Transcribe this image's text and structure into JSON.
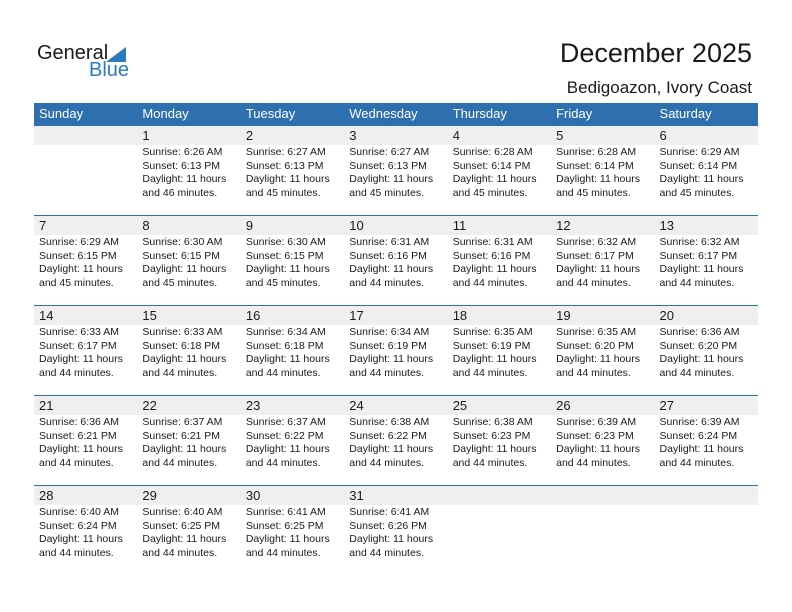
{
  "logo": {
    "text1": "General",
    "text2": "Blue"
  },
  "header": {
    "title": "December 2025",
    "location": "Bedigoazon, Ivory Coast"
  },
  "weekdays": [
    "Sunday",
    "Monday",
    "Tuesday",
    "Wednesday",
    "Thursday",
    "Friday",
    "Saturday"
  ],
  "daylight_label": "Daylight: 11 hours",
  "weeks": [
    [
      null,
      {
        "day": "1",
        "sunrise": "Sunrise: 6:26 AM",
        "sunset": "Sunset: 6:13 PM",
        "minutes": "and 46 minutes."
      },
      {
        "day": "2",
        "sunrise": "Sunrise: 6:27 AM",
        "sunset": "Sunset: 6:13 PM",
        "minutes": "and 45 minutes."
      },
      {
        "day": "3",
        "sunrise": "Sunrise: 6:27 AM",
        "sunset": "Sunset: 6:13 PM",
        "minutes": "and 45 minutes."
      },
      {
        "day": "4",
        "sunrise": "Sunrise: 6:28 AM",
        "sunset": "Sunset: 6:14 PM",
        "minutes": "and 45 minutes."
      },
      {
        "day": "5",
        "sunrise": "Sunrise: 6:28 AM",
        "sunset": "Sunset: 6:14 PM",
        "minutes": "and 45 minutes."
      },
      {
        "day": "6",
        "sunrise": "Sunrise: 6:29 AM",
        "sunset": "Sunset: 6:14 PM",
        "minutes": "and 45 minutes."
      }
    ],
    [
      {
        "day": "7",
        "sunrise": "Sunrise: 6:29 AM",
        "sunset": "Sunset: 6:15 PM",
        "minutes": "and 45 minutes."
      },
      {
        "day": "8",
        "sunrise": "Sunrise: 6:30 AM",
        "sunset": "Sunset: 6:15 PM",
        "minutes": "and 45 minutes."
      },
      {
        "day": "9",
        "sunrise": "Sunrise: 6:30 AM",
        "sunset": "Sunset: 6:15 PM",
        "minutes": "and 45 minutes."
      },
      {
        "day": "10",
        "sunrise": "Sunrise: 6:31 AM",
        "sunset": "Sunset: 6:16 PM",
        "minutes": "and 44 minutes."
      },
      {
        "day": "11",
        "sunrise": "Sunrise: 6:31 AM",
        "sunset": "Sunset: 6:16 PM",
        "minutes": "and 44 minutes."
      },
      {
        "day": "12",
        "sunrise": "Sunrise: 6:32 AM",
        "sunset": "Sunset: 6:17 PM",
        "minutes": "and 44 minutes."
      },
      {
        "day": "13",
        "sunrise": "Sunrise: 6:32 AM",
        "sunset": "Sunset: 6:17 PM",
        "minutes": "and 44 minutes."
      }
    ],
    [
      {
        "day": "14",
        "sunrise": "Sunrise: 6:33 AM",
        "sunset": "Sunset: 6:17 PM",
        "minutes": "and 44 minutes."
      },
      {
        "day": "15",
        "sunrise": "Sunrise: 6:33 AM",
        "sunset": "Sunset: 6:18 PM",
        "minutes": "and 44 minutes."
      },
      {
        "day": "16",
        "sunrise": "Sunrise: 6:34 AM",
        "sunset": "Sunset: 6:18 PM",
        "minutes": "and 44 minutes."
      },
      {
        "day": "17",
        "sunrise": "Sunrise: 6:34 AM",
        "sunset": "Sunset: 6:19 PM",
        "minutes": "and 44 minutes."
      },
      {
        "day": "18",
        "sunrise": "Sunrise: 6:35 AM",
        "sunset": "Sunset: 6:19 PM",
        "minutes": "and 44 minutes."
      },
      {
        "day": "19",
        "sunrise": "Sunrise: 6:35 AM",
        "sunset": "Sunset: 6:20 PM",
        "minutes": "and 44 minutes."
      },
      {
        "day": "20",
        "sunrise": "Sunrise: 6:36 AM",
        "sunset": "Sunset: 6:20 PM",
        "minutes": "and 44 minutes."
      }
    ],
    [
      {
        "day": "21",
        "sunrise": "Sunrise: 6:36 AM",
        "sunset": "Sunset: 6:21 PM",
        "minutes": "and 44 minutes."
      },
      {
        "day": "22",
        "sunrise": "Sunrise: 6:37 AM",
        "sunset": "Sunset: 6:21 PM",
        "minutes": "and 44 minutes."
      },
      {
        "day": "23",
        "sunrise": "Sunrise: 6:37 AM",
        "sunset": "Sunset: 6:22 PM",
        "minutes": "and 44 minutes."
      },
      {
        "day": "24",
        "sunrise": "Sunrise: 6:38 AM",
        "sunset": "Sunset: 6:22 PM",
        "minutes": "and 44 minutes."
      },
      {
        "day": "25",
        "sunrise": "Sunrise: 6:38 AM",
        "sunset": "Sunset: 6:23 PM",
        "minutes": "and 44 minutes."
      },
      {
        "day": "26",
        "sunrise": "Sunrise: 6:39 AM",
        "sunset": "Sunset: 6:23 PM",
        "minutes": "and 44 minutes."
      },
      {
        "day": "27",
        "sunrise": "Sunrise: 6:39 AM",
        "sunset": "Sunset: 6:24 PM",
        "minutes": "and 44 minutes."
      }
    ],
    [
      {
        "day": "28",
        "sunrise": "Sunrise: 6:40 AM",
        "sunset": "Sunset: 6:24 PM",
        "minutes": "and 44 minutes."
      },
      {
        "day": "29",
        "sunrise": "Sunrise: 6:40 AM",
        "sunset": "Sunset: 6:25 PM",
        "minutes": "and 44 minutes."
      },
      {
        "day": "30",
        "sunrise": "Sunrise: 6:41 AM",
        "sunset": "Sunset: 6:25 PM",
        "minutes": "and 44 minutes."
      },
      {
        "day": "31",
        "sunrise": "Sunrise: 6:41 AM",
        "sunset": "Sunset: 6:26 PM",
        "minutes": "and 44 minutes."
      },
      null,
      null,
      null
    ]
  ]
}
